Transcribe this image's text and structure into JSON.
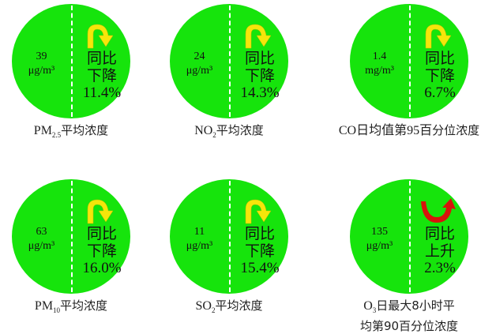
{
  "colors": {
    "circle": "#16e40c",
    "down_arrow": "#f5e60a",
    "up_arrow": "#d8140c"
  },
  "tiles": [
    {
      "value": "39",
      "unit": "μg/m³",
      "change_line1": "同比",
      "change_line2": "下降",
      "change_pct": "11.4%",
      "direction": "down",
      "label_main": "PM",
      "label_sub": "2.5",
      "label_rest": "平均浓度"
    },
    {
      "value": "24",
      "unit": "μg/m³",
      "change_line1": "同比",
      "change_line2": "下降",
      "change_pct": "14.3%",
      "direction": "down",
      "label_main": "NO",
      "label_sub": "2",
      "label_rest": "平均浓度"
    },
    {
      "value": "1.4",
      "unit": "mg/m³",
      "change_line1": "同比",
      "change_line2": "下降",
      "change_pct": "6.7%",
      "direction": "down",
      "label_main": "CO日均值第95百",
      "label_sub": "",
      "label_rest": "分位浓度"
    },
    {
      "value": "63",
      "unit": "μg/m³",
      "change_line1": "同比",
      "change_line2": "下降",
      "change_pct": "16.0%",
      "direction": "down",
      "label_main": "PM",
      "label_sub": "10",
      "label_rest": "平均浓度"
    },
    {
      "value": "11",
      "unit": "μg/m³",
      "change_line1": "同比",
      "change_line2": "下降",
      "change_pct": "15.4%",
      "direction": "down",
      "label_main": "SO",
      "label_sub": "2",
      "label_rest": "平均浓度"
    },
    {
      "value": "135",
      "unit": "μg/m³",
      "change_line1": "同比",
      "change_line2": "上升",
      "change_pct": "2.3%",
      "direction": "up",
      "label_main": "O",
      "label_sub": "3",
      "label_rest": "日最大8小时平",
      "label_line2": "均第90百分位浓度"
    }
  ]
}
